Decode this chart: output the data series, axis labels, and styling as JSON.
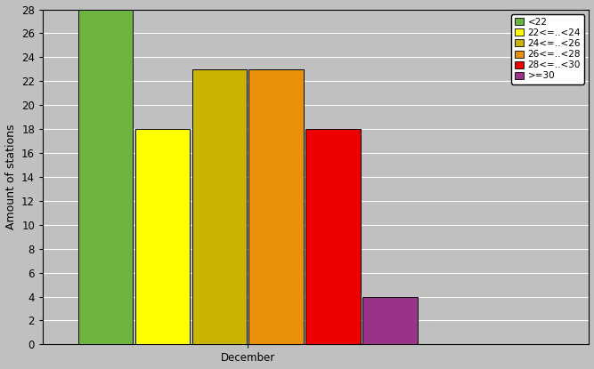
{
  "categories": [
    "December"
  ],
  "bars": [
    {
      "label": "<22",
      "value": 28,
      "color": "#6db33f"
    },
    {
      "label": "22<=..<24",
      "value": 18,
      "color": "#ffff00"
    },
    {
      "label": "24<=..<26",
      "value": 23,
      "color": "#c8b400"
    },
    {
      "label": "26<=..<28",
      "value": 23,
      "color": "#e8900a"
    },
    {
      "label": "28<=..<30",
      "value": 18,
      "color": "#ee0000"
    },
    {
      "label": ">=30",
      "value": 4,
      "color": "#993388"
    }
  ],
  "title": "",
  "xlabel": "December",
  "ylabel": "Amount of stations",
  "ylim": [
    0,
    28
  ],
  "yticks": [
    0,
    2,
    4,
    6,
    8,
    10,
    12,
    14,
    16,
    18,
    20,
    22,
    24,
    26,
    28
  ],
  "background_color": "#c0c0c0",
  "plot_bg_color": "#c0c0c0",
  "grid_color": "#ffffff",
  "bar_edge_color": "#000000",
  "bar_width": 0.12,
  "bar_gap": 0.005,
  "legend_fontsize": 7.5,
  "axis_fontsize": 9,
  "tick_fontsize": 8.5
}
